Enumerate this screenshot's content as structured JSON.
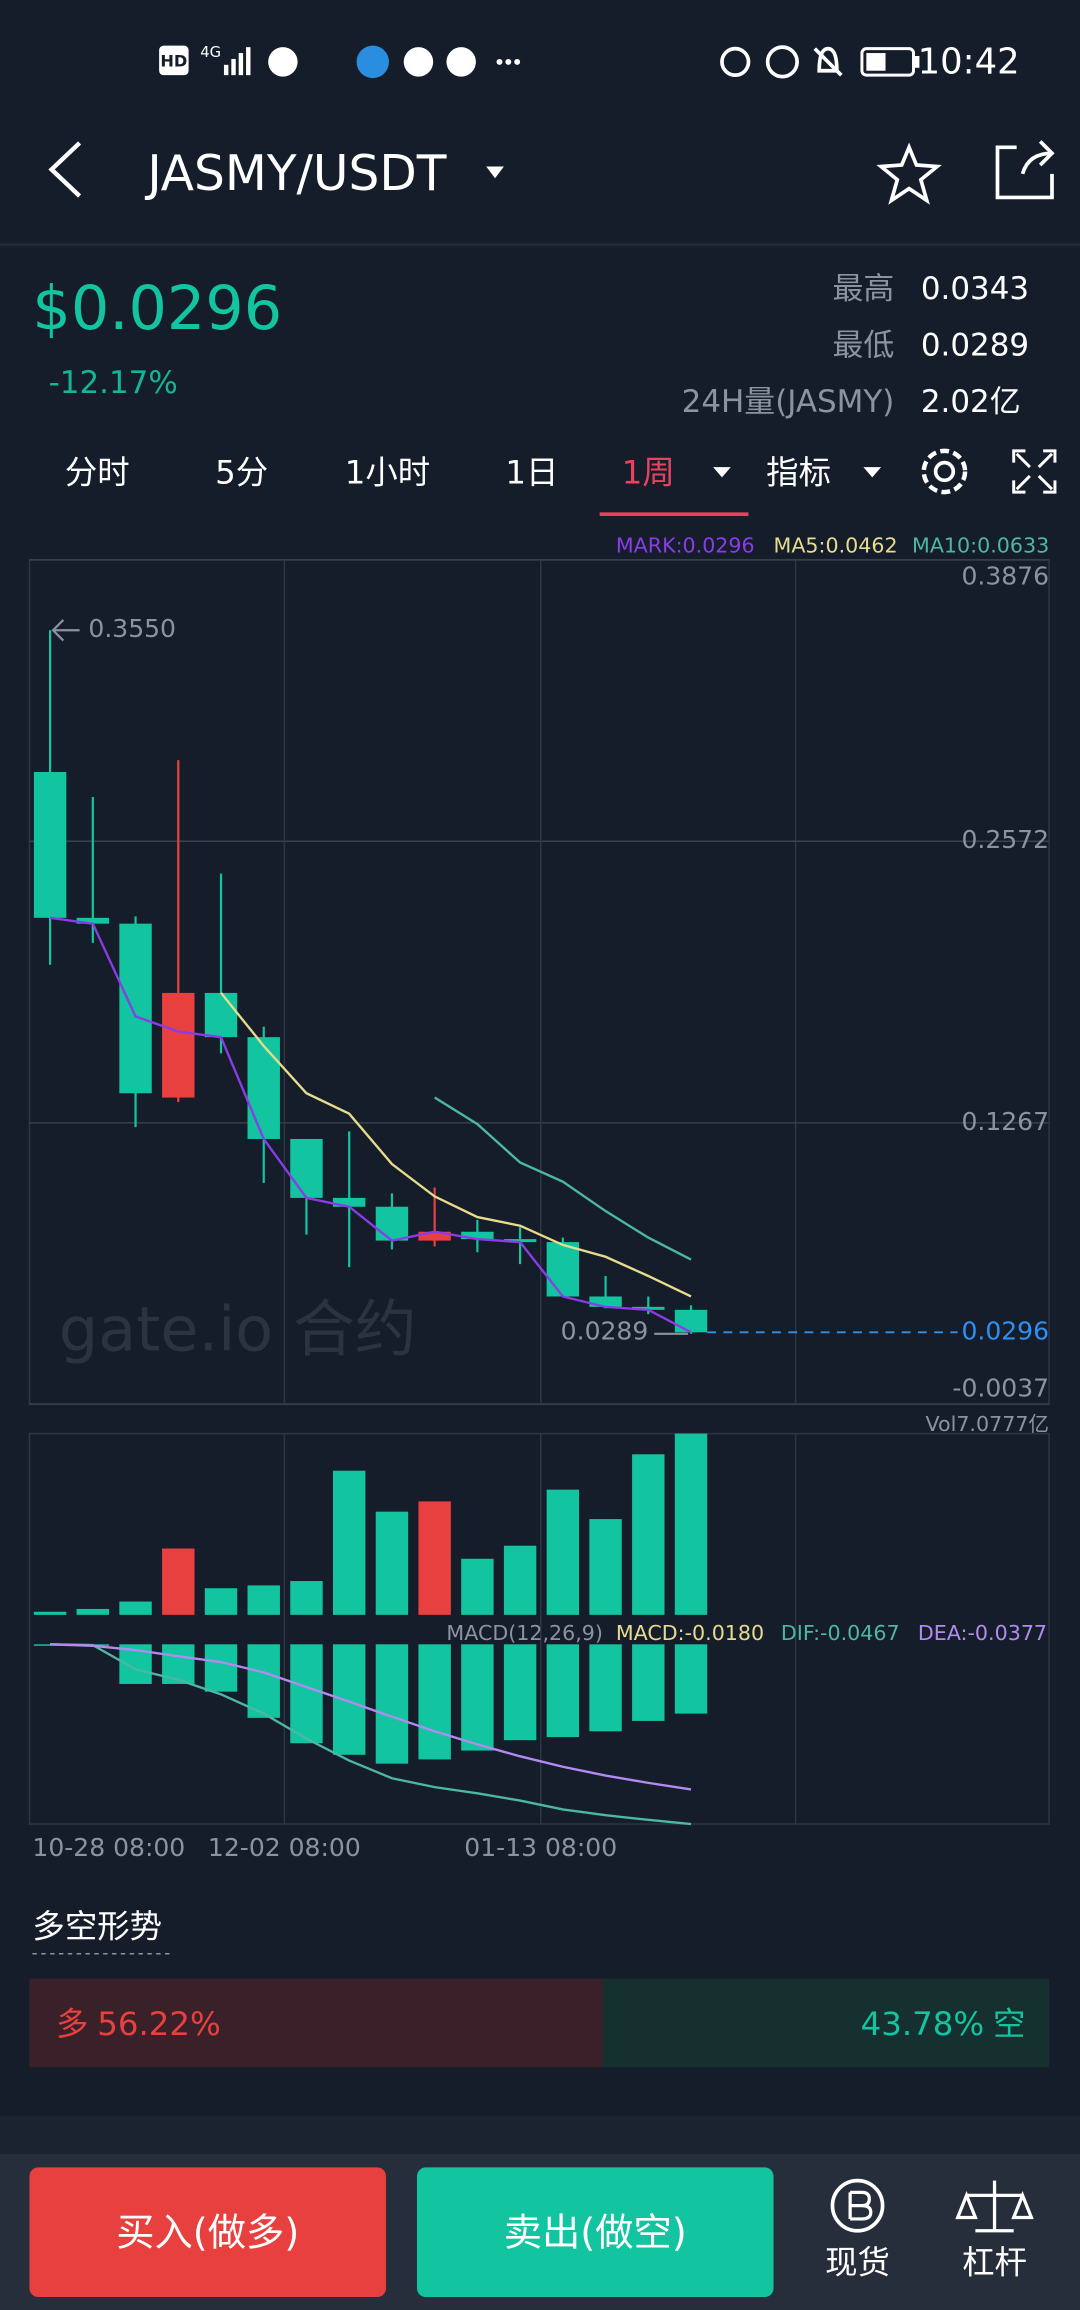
{
  "status_bar": {
    "hd": "HD",
    "network": "4G",
    "time": "10:42"
  },
  "header": {
    "pair": "JASMY/USDT"
  },
  "ticker": {
    "price": "$0.0296",
    "change": "-12.17%",
    "stats": [
      {
        "label": "最高",
        "value": "0.0343"
      },
      {
        "label": "最低",
        "value": "0.0289"
      },
      {
        "label": "24H量(JASMY)",
        "value": "2.02亿"
      }
    ]
  },
  "tabs": [
    "分时",
    "5分",
    "1小时",
    "1日",
    "1周",
    "指标"
  ],
  "active_tab": 4,
  "watermark": "gate.io 合约",
  "chart_data": [
    {
      "type": "candlestick",
      "categories": [
        "10-28 08:00",
        null,
        null,
        null,
        null,
        "12-02 08:00",
        null,
        null,
        null,
        null,
        null,
        "01-13 08:00",
        null,
        null,
        null,
        null
      ],
      "open": [
        0.2893,
        0.2217,
        0.219,
        0.1384,
        0.1869,
        0.1664,
        0.1192,
        0.0919,
        0.0878,
        0.0721,
        0.0762,
        0.0728,
        0.0714,
        0.0462,
        0.0414,
        0.04
      ],
      "high": [
        0.355,
        0.2777,
        0.2224,
        0.2948,
        0.2422,
        0.1712,
        0.1192,
        0.1227,
        0.094,
        0.0967,
        0.0817,
        0.0783,
        0.0735,
        0.0557,
        0.0462,
        0.0421
      ],
      "low": [
        0.1999,
        0.2101,
        0.1247,
        0.1363,
        0.1589,
        0.0988,
        0.0749,
        0.0598,
        0.068,
        0.0694,
        0.0667,
        0.0612,
        0.0462,
        0.0407,
        0.038,
        0.0289
      ],
      "close": [
        0.2217,
        0.219,
        0.1404,
        0.1869,
        0.1664,
        0.1192,
        0.0919,
        0.0878,
        0.0721,
        0.0762,
        0.0728,
        0.0714,
        0.0462,
        0.0414,
        0.04,
        0.0296
      ],
      "up_color": "#e8403f",
      "down_color": "#13c4a0",
      "series": [
        {
          "name": "MARK:0.0296",
          "color": "#8a3ce8",
          "values": [
            0.2217,
            0.219,
            0.176,
            0.169,
            0.1664,
            0.1192,
            0.0919,
            0.0878,
            0.0721,
            0.0762,
            0.0728,
            0.0714,
            0.0462,
            0.0414,
            0.04,
            0.0296
          ]
        },
        {
          "name": "MA5:0.0462",
          "color": "#e7db8e",
          "values": [
            null,
            null,
            null,
            null,
            0.1869,
            0.1623,
            0.1404,
            0.1309,
            0.1076,
            0.0926,
            0.083,
            0.079,
            0.0701,
            0.0646,
            0.0557,
            0.0462
          ]
        },
        {
          "name": "MA10:0.0633",
          "color": "#4bb7a4",
          "values": [
            null,
            null,
            null,
            null,
            null,
            null,
            null,
            null,
            null,
            0.1384,
            0.1261,
            0.1083,
            0.0994,
            0.0858,
            0.0735,
            0.0633
          ]
        }
      ],
      "ylim": [
        -0.0037,
        0.3876
      ],
      "yticks": [
        0.3876,
        0.2572,
        0.1267,
        -0.0037
      ],
      "grid": true,
      "high_marker": {
        "value": 0.355,
        "label": "0.3550"
      },
      "low_marker": 0.0289,
      "current_price": 0.0296,
      "current_color": "#2f8ff0"
    },
    {
      "type": "bar",
      "title": "Vol7.0777亿",
      "values": [
        0.12,
        0.23,
        0.52,
        2.59,
        1.04,
        1.15,
        1.32,
        5.63,
        4.03,
        4.43,
        2.19,
        2.7,
        4.89,
        3.74,
        6.27,
        7.0777
      ],
      "colors": [
        "#13c4a0",
        "#13c4a0",
        "#13c4a0",
        "#e8403f",
        "#13c4a0",
        "#13c4a0",
        "#13c4a0",
        "#13c4a0",
        "#13c4a0",
        "#e8403f",
        "#13c4a0",
        "#13c4a0",
        "#13c4a0",
        "#13c4a0",
        "#13c4a0",
        "#13c4a0"
      ],
      "ylim": [
        0,
        7.0777
      ]
    },
    {
      "type": "macd",
      "title": "MACD(12,26,9)",
      "bar_color": "#13c4a0",
      "series": [
        {
          "name": "MACD:-0.0180",
          "color": "#e7db8e",
          "values": [
            -0.0002,
            -0.0004,
            -0.0103,
            -0.0103,
            -0.0123,
            -0.0191,
            -0.0257,
            -0.0287,
            -0.031,
            -0.0299,
            -0.0276,
            -0.0249,
            -0.0241,
            -0.0226,
            -0.0199,
            -0.018
          ]
        },
        {
          "name": "DIF:-0.0467",
          "color": "#4bb7a4",
          "values": [
            0,
            -0.0002,
            -0.0065,
            -0.0092,
            -0.013,
            -0.018,
            -0.0245,
            -0.0302,
            -0.0348,
            -0.0371,
            -0.0387,
            -0.0406,
            -0.0429,
            -0.0444,
            -0.0456,
            -0.0467
          ]
        },
        {
          "name": "DEA:-0.0377",
          "color": "#b38bf0",
          "values": [
            0,
            -0.0004,
            -0.0015,
            -0.0031,
            -0.0046,
            -0.0073,
            -0.0111,
            -0.0149,
            -0.0188,
            -0.0226,
            -0.026,
            -0.0291,
            -0.0318,
            -0.0341,
            -0.036,
            -0.0377
          ]
        }
      ],
      "ylim": [
        -0.0467,
        0
      ]
    }
  ],
  "sentiment": {
    "title": "多空形势",
    "long": {
      "label": "多",
      "value": 56.22,
      "value_label": "56.22%"
    },
    "short": {
      "label": "空",
      "value": 43.78,
      "value_label": "43.78%"
    }
  },
  "footer": {
    "buy": "买入(做多)",
    "sell": "卖出(做空)",
    "spot": "现货",
    "margin": "杠杆"
  }
}
